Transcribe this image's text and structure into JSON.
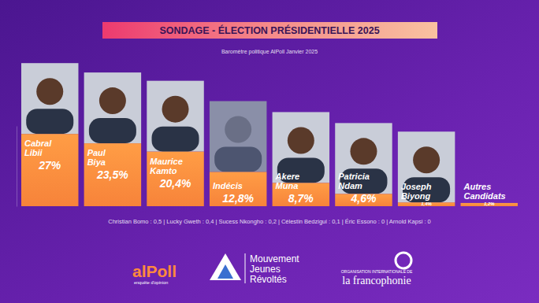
{
  "chart_data": {
    "type": "bar",
    "title": "SONDAGE - ÉLECTION PRÉSIDENTIELLE 2025",
    "subtitle": "Baromètre politique AlPoll Janvier 2025",
    "categories": [
      "Cabral Libii",
      "Paul Biya",
      "Maurice Kamto",
      "Indécis",
      "Akere Muna",
      "Patricia Ndam",
      "Joseph Biyong",
      "Autres Candidats"
    ],
    "values": [
      27,
      23.5,
      20.4,
      12.8,
      8.7,
      4.6,
      1.4,
      1.2
    ],
    "value_labels": [
      "27%",
      "23,5%",
      "20,4%",
      "12,8%",
      "8,7%",
      "4,6%",
      "1,4%",
      "1,2%"
    ],
    "color": "#f7833a",
    "ylim": [
      0,
      30
    ],
    "data_labels": true,
    "tick_labels": false,
    "annotations": [
      "Christian Bomo : 0,5 | Lucky Gweth : 0,4 | Sucess Nkongho : 0,2 | Célestin Bedzigui : 0,1 | Éric Essono : 0 | Arnold Kapsi : 0",
      "alPoll",
      "enquête d'opinion",
      "Mouvement",
      "Jeunes",
      "Révoltés",
      "ORGANISATION INTERNATIONALE DE",
      "la francophonie"
    ]
  }
}
